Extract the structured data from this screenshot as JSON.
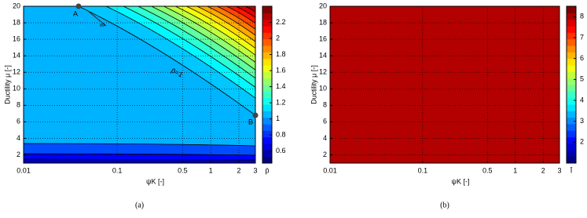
{
  "chart_data": [
    {
      "type": "contour",
      "xlabel": "ψK [-]",
      "ylabel": "Ductility μ [-]",
      "xscale": "log",
      "xlim": [
        0.01,
        3
      ],
      "xticks": [
        0.01,
        0.1,
        0.5,
        1,
        2,
        3
      ],
      "ylim": [
        1,
        20
      ],
      "yticks": [
        2,
        4,
        6,
        8,
        10,
        12,
        14,
        16,
        18,
        20
      ],
      "grid": true,
      "colorbar": {
        "label": "p̄",
        "lim": [
          0.45,
          2.4
        ],
        "ticks": [
          0.6,
          0.8,
          1,
          1.2,
          1.4,
          1.6,
          1.8,
          2,
          2.2
        ]
      },
      "annotations": [
        "A",
        "B",
        "∞",
        "p̄=1"
      ],
      "caption": "(a)"
    },
    {
      "type": "contour",
      "xlabel": "ψK [-]",
      "ylabel": "Ductility μ [-]",
      "xscale": "log",
      "xlim": [
        0.01,
        3
      ],
      "xticks": [
        0.01,
        0.1,
        0.5,
        1,
        2,
        3
      ],
      "ylim": [
        1,
        20
      ],
      "yticks": [
        2,
        4,
        6,
        8,
        10,
        12,
        14,
        16,
        18,
        20
      ],
      "grid": true,
      "colorbar": {
        "label": "Ī",
        "lim": [
          1,
          8.5
        ],
        "ticks": [
          2,
          3,
          4,
          5,
          6,
          7,
          8
        ]
      },
      "caption": "(b)"
    }
  ]
}
